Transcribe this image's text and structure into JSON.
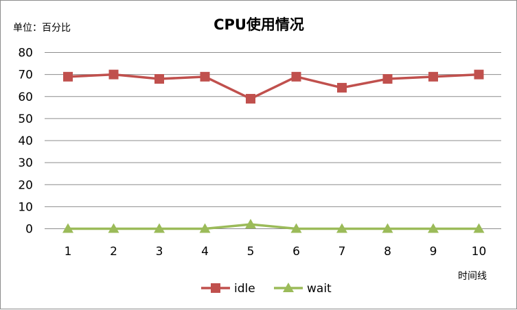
{
  "chart_data": {
    "type": "line",
    "title": "CPU使用情况",
    "unit_label": "单位：百分比",
    "xlabel": "时间线",
    "ylabel": "",
    "ylim": [
      0,
      80
    ],
    "y_ticks": [
      0,
      10,
      20,
      30,
      40,
      50,
      60,
      70,
      80
    ],
    "categories": [
      "1",
      "2",
      "3",
      "4",
      "5",
      "6",
      "7",
      "8",
      "9",
      "10"
    ],
    "grid": true,
    "legend_position": "bottom",
    "series": [
      {
        "name": "idle",
        "marker": "square",
        "color": "#c0504d",
        "values": [
          69,
          70,
          68,
          69,
          59,
          69,
          64,
          68,
          69,
          70
        ]
      },
      {
        "name": "wait",
        "marker": "triangle",
        "color": "#9bbb59",
        "values": [
          0,
          0,
          0,
          0,
          2,
          0,
          0,
          0,
          0,
          0
        ]
      }
    ]
  }
}
